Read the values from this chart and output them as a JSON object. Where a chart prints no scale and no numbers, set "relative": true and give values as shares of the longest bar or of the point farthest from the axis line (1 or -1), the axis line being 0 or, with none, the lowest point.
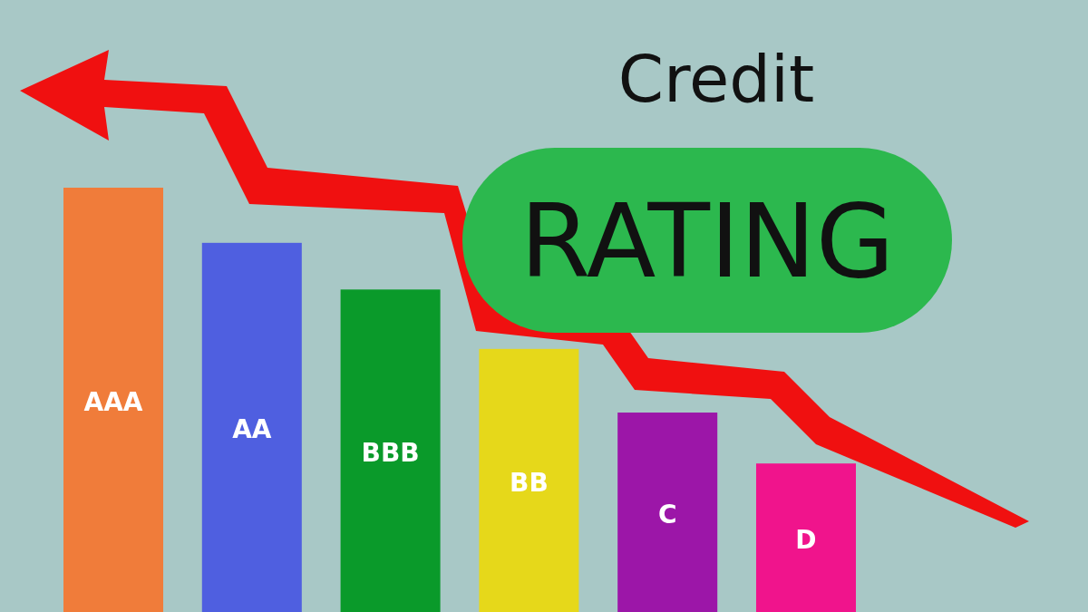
{
  "chart_data": {
    "type": "bar",
    "title": "Credit",
    "subtitle": "RATING",
    "relative": true,
    "categories": [
      "AAA",
      "AA",
      "BBB",
      "BB",
      "C",
      "D"
    ],
    "values": [
      1,
      0.87,
      0.76,
      0.62,
      0.47,
      0.35
    ],
    "colors": [
      "#f07c3a",
      "#4f5fe0",
      "#0a9a2a",
      "#e6d81a",
      "#9c16a8",
      "#f0148c"
    ]
  }
}
